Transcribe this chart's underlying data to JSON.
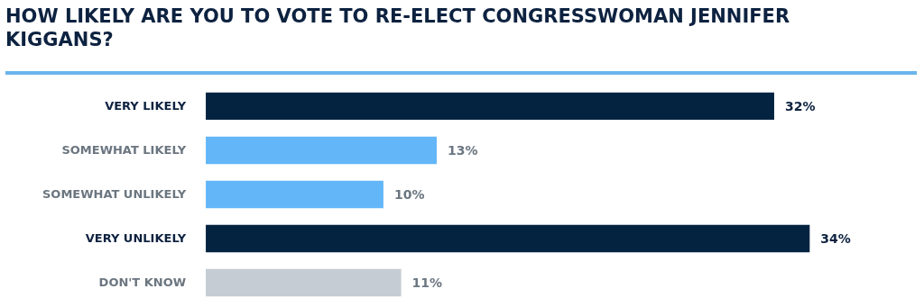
{
  "chart_data": {
    "type": "bar",
    "orientation": "horizontal",
    "title": "HOW LIKELY ARE YOU TO VOTE TO RE-ELECT CONGRESSWOMAN JENNIFER KIGGANS?",
    "categories": [
      "VERY LIKELY",
      "SOMEWHAT LIKELY",
      "SOMEWHAT UNLIKELY",
      "VERY UNLIKELY",
      "DON'T KNOW"
    ],
    "values": [
      32,
      13,
      10,
      34,
      11
    ],
    "value_labels": [
      "32%",
      "13%",
      "10%",
      "34%",
      "11%"
    ],
    "colors": [
      "#032341",
      "#63b6f7",
      "#63b6f7",
      "#032341",
      "#c5ccd4"
    ],
    "grid": false
  }
}
